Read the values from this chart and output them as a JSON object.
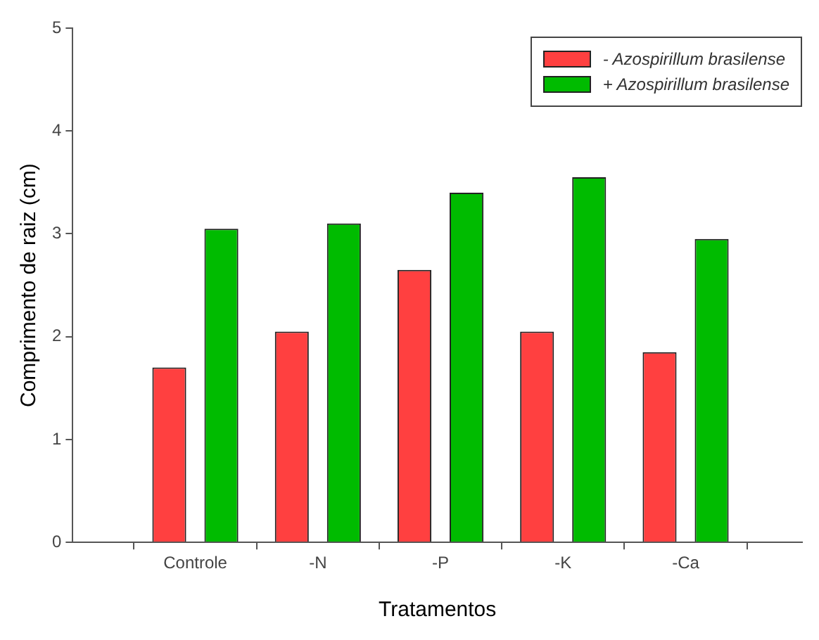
{
  "chart_data": {
    "type": "bar",
    "xlabel": "Tratamentos",
    "ylabel": "Comprimento de raiz (cm)",
    "categories": [
      "Controle",
      "-N",
      "-P",
      "-K",
      "-Ca"
    ],
    "series": [
      {
        "name": "- Azospirillum brasilense",
        "color": "#ff4040",
        "values": [
          1.7,
          2.05,
          2.65,
          2.05,
          1.85
        ]
      },
      {
        "name": "+ Azospirillum brasilense",
        "color": "#00bb00",
        "values": [
          3.05,
          3.1,
          3.4,
          3.55,
          2.95
        ]
      }
    ],
    "ylim": [
      0,
      5
    ],
    "yticks": [
      0,
      1,
      2,
      3,
      4,
      5
    ],
    "grid": false,
    "legend": "top right"
  }
}
